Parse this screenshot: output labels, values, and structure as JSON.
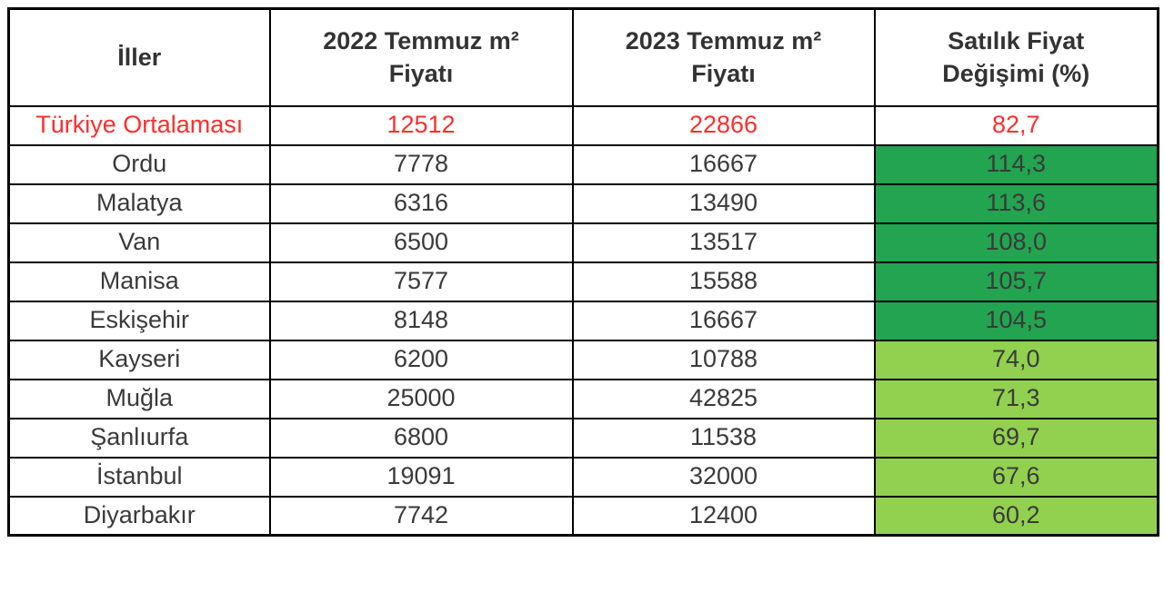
{
  "colors": {
    "average_text": "#FF2D2D",
    "gain_high_bg": "#22A450",
    "gain_mid_bg": "#92D050",
    "border": "#000000",
    "text": "#3A3A3A"
  },
  "chart_data": {
    "type": "table",
    "columns": [
      "İller",
      "2022 Temmuz m²\nFiyatı",
      "2023 Temmuz m²\nFiyatı",
      "Satılık Fiyat\nDeğişimi (%)"
    ],
    "rows": [
      {
        "city": "Türkiye Ortalaması",
        "price_2022": "12512",
        "price_2023": "22866",
        "change": "82,7",
        "emphasis": "average"
      },
      {
        "city": "Ordu",
        "price_2022": "7778",
        "price_2023": "16667",
        "change": "114,3",
        "emphasis": "gain-high"
      },
      {
        "city": "Malatya",
        "price_2022": "6316",
        "price_2023": "13490",
        "change": "113,6",
        "emphasis": "gain-high"
      },
      {
        "city": "Van",
        "price_2022": "6500",
        "price_2023": "13517",
        "change": "108,0",
        "emphasis": "gain-high"
      },
      {
        "city": "Manisa",
        "price_2022": "7577",
        "price_2023": "15588",
        "change": "105,7",
        "emphasis": "gain-high"
      },
      {
        "city": "Eskişehir",
        "price_2022": "8148",
        "price_2023": "16667",
        "change": "104,5",
        "emphasis": "gain-high"
      },
      {
        "city": "Kayseri",
        "price_2022": "6200",
        "price_2023": "10788",
        "change": "74,0",
        "emphasis": "gain-mid"
      },
      {
        "city": "Muğla",
        "price_2022": "25000",
        "price_2023": "42825",
        "change": "71,3",
        "emphasis": "gain-mid"
      },
      {
        "city": "Şanlıurfa",
        "price_2022": "6800",
        "price_2023": "11538",
        "change": "69,7",
        "emphasis": "gain-mid"
      },
      {
        "city": "İstanbul",
        "price_2022": "19091",
        "price_2023": "32000",
        "change": "67,6",
        "emphasis": "gain-mid"
      },
      {
        "city": "Diyarbakır",
        "price_2022": "7742",
        "price_2023": "12400",
        "change": "60,2",
        "emphasis": "gain-mid"
      }
    ]
  }
}
